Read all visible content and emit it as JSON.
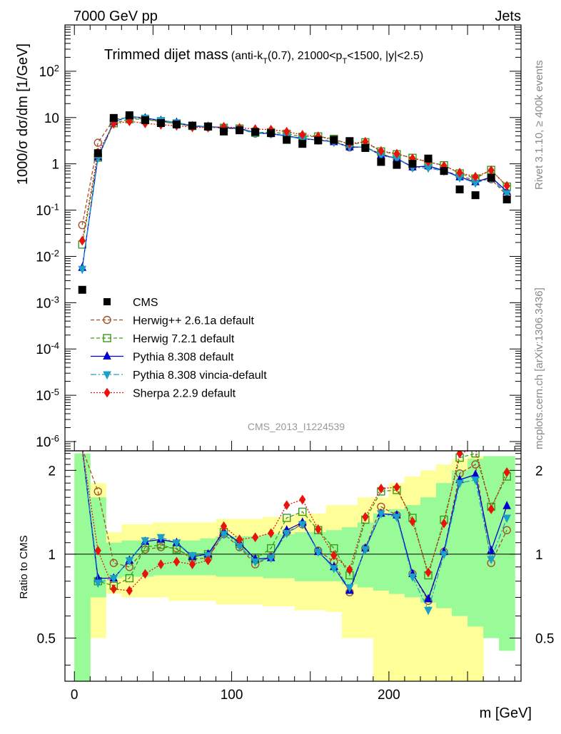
{
  "header": {
    "left": "7000 GeV pp",
    "right": "Jets"
  },
  "side_labels": {
    "rivet": "Rivet 3.1.10, ≥ 400k events",
    "mcplots": "mcplots.cern.ch [arXiv:1306.3436]"
  },
  "chart_data": {
    "type": "line",
    "title": "Trimmed dijet mass",
    "subtitle": "(anti-k_T(0.7), 21000<p_T<1500, |y|<2.5)",
    "analysis_id": "CMS_2013_I1224539",
    "xlabel": "m [GeV]",
    "ylabel": "1000/σ dσ/dm [1/GeV]",
    "ratio_ylabel": "Ratio to CMS",
    "xlim": [
      -6,
      284
    ],
    "ylim_log": [
      -6.2,
      3.0
    ],
    "ratio_ylim": [
      0.35,
      2.35
    ],
    "x_ticks": [
      "0",
      "100",
      "200"
    ],
    "y_tick_labels": [
      "10^-6",
      "10^-5",
      "10^-4",
      "10^-3",
      "10^-2",
      "10^-1",
      "1",
      "10",
      "10^2"
    ],
    "ratio_tick_labels": [
      "0.5",
      "1",
      "2"
    ],
    "x": [
      5,
      15,
      25,
      35,
      45,
      55,
      65,
      75,
      85,
      95,
      105,
      115,
      125,
      135,
      145,
      155,
      165,
      175,
      185,
      195,
      205,
      215,
      225,
      235,
      245,
      255,
      265,
      275
    ],
    "data": {
      "name": "CMS",
      "values": [
        0.0019,
        1.7,
        9.8,
        11.2,
        8.8,
        7.6,
        7.1,
        6.7,
        6.4,
        5.0,
        5.3,
        4.9,
        4.6,
        3.3,
        2.7,
        3.2,
        3.3,
        3.1,
        2.2,
        1.1,
        0.95,
        1.0,
        1.3,
        0.7,
        0.28,
        0.21,
        0.5,
        0.17
      ]
    },
    "series": [
      {
        "name": "Herwig++ 2.6.1a default",
        "color": "#a0522d",
        "dash": "5,3",
        "marker": "circle",
        "fill": "none",
        "ratio": [
          25,
          1.68,
          0.93,
          0.9,
          1.04,
          1.06,
          1.05,
          0.96,
          0.97,
          1.18,
          1.06,
          0.92,
          0.98,
          1.2,
          1.28,
          1.03,
          0.94,
          0.73,
          1.05,
          1.48,
          1.38,
          0.85,
          0.68,
          1.02,
          1.95,
          2.1,
          0.93,
          1.22
        ]
      },
      {
        "name": "Herwig 7.2.1 default",
        "color": "#3a9a1c",
        "dash": "5,3",
        "marker": "square",
        "fill": "none",
        "ratio": [
          9.5,
          0.8,
          0.77,
          0.82,
          1.06,
          1.08,
          1.04,
          0.98,
          1.0,
          1.2,
          1.09,
          0.96,
          1.05,
          1.35,
          1.42,
          1.22,
          1.05,
          0.84,
          1.33,
          1.68,
          1.7,
          1.35,
          0.84,
          1.33,
          2.22,
          2.3,
          1.48,
          1.9
        ]
      },
      {
        "name": "Pythia 8.308 default",
        "color": "#0000cc",
        "dash": "none",
        "marker": "triangle-up",
        "fill": "#0000cc",
        "ratio": [
          3.0,
          0.82,
          0.82,
          0.95,
          1.11,
          1.13,
          1.1,
          0.98,
          1.0,
          1.21,
          1.1,
          0.96,
          0.97,
          1.22,
          1.3,
          1.02,
          0.9,
          0.74,
          1.05,
          1.4,
          1.38,
          0.85,
          0.69,
          1.02,
          1.85,
          1.93,
          1.03,
          1.49
        ]
      },
      {
        "name": "Pythia 8.308 vincia-default",
        "color": "#1aa0c8",
        "dash": "8,3,2,3",
        "marker": "triangle-down",
        "fill": "#1aa0c8",
        "ratio": [
          2.8,
          0.79,
          0.82,
          0.95,
          1.12,
          1.15,
          1.1,
          0.99,
          0.99,
          1.18,
          1.07,
          0.94,
          0.97,
          1.19,
          1.28,
          1.02,
          0.89,
          0.76,
          1.04,
          1.4,
          1.36,
          0.83,
          0.63,
          1.0,
          1.8,
          1.85,
          0.96,
          1.35
        ]
      },
      {
        "name": "Sherpa 2.2.9 default",
        "color": "#e8140c",
        "dash": "2,2",
        "marker": "diamond",
        "fill": "#e8140c",
        "ratio": [
          11.5,
          1.03,
          0.75,
          0.74,
          0.85,
          0.92,
          0.94,
          0.92,
          0.95,
          1.26,
          1.13,
          1.15,
          1.19,
          1.5,
          1.57,
          1.23,
          0.99,
          0.88,
          1.36,
          1.72,
          1.74,
          1.31,
          0.86,
          1.29,
          2.3,
          2.5,
          1.45,
          1.97
        ]
      }
    ],
    "data_uncertainty": {
      "yellow": [
        [
          0.12,
          2.2
        ],
        [
          0.5,
          1.8
        ],
        [
          0.72,
          1.2
        ],
        [
          0.7,
          1.28
        ],
        [
          0.7,
          1.28
        ],
        [
          0.7,
          1.3
        ],
        [
          0.68,
          1.3
        ],
        [
          0.68,
          1.3
        ],
        [
          0.68,
          1.3
        ],
        [
          0.66,
          1.34
        ],
        [
          0.66,
          1.34
        ],
        [
          0.66,
          1.34
        ],
        [
          0.65,
          1.36
        ],
        [
          0.65,
          1.36
        ],
        [
          0.63,
          1.4
        ],
        [
          0.63,
          1.4
        ],
        [
          0.62,
          1.5
        ],
        [
          0.5,
          1.5
        ],
        [
          0.5,
          1.6
        ],
        [
          0.35,
          1.6
        ],
        [
          0.35,
          1.8
        ],
        [
          0.35,
          1.9
        ],
        [
          0.35,
          2.0
        ],
        [
          0.35,
          2.1
        ],
        [
          0.35,
          2.2
        ],
        [
          0.35,
          2.25
        ],
        [
          0.5,
          2.25
        ],
        [
          0.5,
          2.25
        ]
      ],
      "green": [
        [
          0.35,
          2.3
        ],
        [
          0.7,
          1.6
        ],
        [
          0.82,
          1.1
        ],
        [
          0.83,
          1.12
        ],
        [
          0.83,
          1.12
        ],
        [
          0.84,
          1.12
        ],
        [
          0.84,
          1.12
        ],
        [
          0.84,
          1.12
        ],
        [
          0.84,
          1.14
        ],
        [
          0.83,
          1.16
        ],
        [
          0.83,
          1.16
        ],
        [
          0.83,
          1.16
        ],
        [
          0.82,
          1.18
        ],
        [
          0.82,
          1.18
        ],
        [
          0.8,
          1.2
        ],
        [
          0.8,
          1.2
        ],
        [
          0.8,
          1.22
        ],
        [
          0.78,
          1.25
        ],
        [
          0.76,
          1.3
        ],
        [
          0.74,
          1.4
        ],
        [
          0.72,
          1.45
        ],
        [
          0.7,
          1.5
        ],
        [
          0.67,
          1.6
        ],
        [
          0.64,
          1.8
        ],
        [
          0.6,
          2.0
        ],
        [
          0.55,
          2.2
        ],
        [
          0.5,
          2.25
        ],
        [
          0.45,
          2.25
        ]
      ]
    }
  }
}
